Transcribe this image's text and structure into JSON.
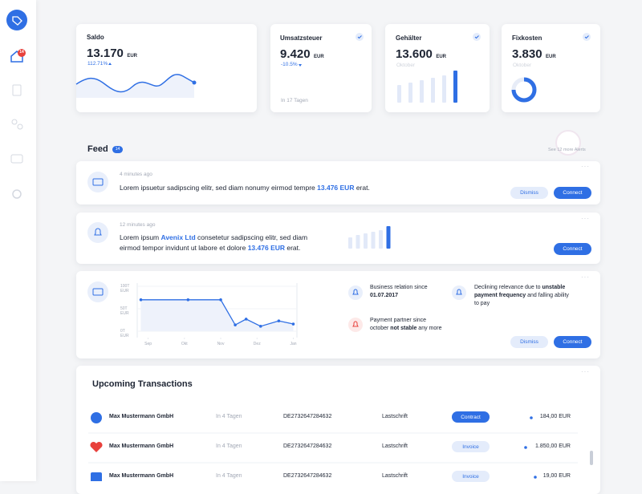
{
  "sidebar": {
    "badge": "14"
  },
  "cards": [
    {
      "title": "Saldo",
      "amount": "13.170",
      "currency": "EUR",
      "change": "112.71%"
    },
    {
      "title": "Umsatzsteuer",
      "amount": "9.420",
      "currency": "EUR",
      "change": "-10.5%",
      "note": "In 17 Tagen"
    },
    {
      "title": "Gehälter",
      "amount": "13.600",
      "currency": "EUR",
      "note": "Oktober",
      "bars": [
        22,
        25,
        28,
        31,
        34,
        40
      ]
    },
    {
      "title": "Fixkosten",
      "amount": "3.830",
      "currency": "EUR",
      "note": "Oktober"
    }
  ],
  "feed": {
    "title": "Feed",
    "badge": "14",
    "more": "See 12 more Alerts",
    "items": [
      {
        "time": "4 minutes ago",
        "text": [
          "Lorem ipsuetur sadipscing elitr, sed diam nonumy eirmod tempre ",
          "13.476 EUR",
          " erat."
        ],
        "buttons": [
          "Dismiss",
          "Connect"
        ]
      },
      {
        "time": "12 minutes ago",
        "text": [
          "Lorem ipsum ",
          "Avenix Ltd",
          " consetetur sadipscing elitr, sed diam eirmod tempor invidunt ut labore et dolore ",
          "13.476 EUR",
          " erat."
        ],
        "buttons": [
          "Connect"
        ],
        "bars": [
          14,
          17,
          19,
          21,
          23,
          28
        ]
      },
      {
        "chart": {
          "type": "line",
          "color": "#2f6fe4",
          "x": [
            -0.2,
            1.1,
            2,
            2.4,
            2.7,
            3.1,
            3.6,
            4
          ],
          "values": [
            70,
            70,
            70,
            14,
            27,
            11,
            23,
            16
          ],
          "xlim": [
            -0.3,
            4.1
          ],
          "ylim": [
            0,
            100
          ],
          "xticks": [
            {
              "value": 0,
              "label": "Sep"
            },
            {
              "value": 1,
              "label": "Okt"
            },
            {
              "value": 2,
              "label": "Nov"
            },
            {
              "value": 3,
              "label": "Dez"
            },
            {
              "value": 4,
              "label": "Jan"
            }
          ],
          "yticks": [
            {
              "value": 100,
              "label": "100T EUR"
            },
            {
              "value": 50,
              "label": "50T EUR"
            },
            {
              "value": 0,
              "label": "0T EUR"
            }
          ]
        },
        "insights": [
          {
            "text": [
              "Business relation since ",
              "01.07.2017"
            ]
          },
          {
            "text": [
              "Payment partner since october ",
              "not stable",
              " any more"
            ]
          },
          {
            "text": [
              "Declining relevance due to ",
              "unstable payment frequency",
              " and falling ability to pay"
            ]
          }
        ],
        "buttons": [
          "Dismiss",
          "Connect"
        ]
      }
    ]
  },
  "transactions": {
    "title": "Upcoming Transactions",
    "rows": [
      {
        "name": "Max Mustermann GmbH",
        "due": "In 4 Tagen",
        "iban": "DE2732647284632",
        "method": "Lastschrift",
        "tag": "Contract",
        "amount": "184,00 EUR"
      },
      {
        "name": "Max Mustermann GmbH",
        "due": "In 4 Tagen",
        "iban": "DE2732647284632",
        "method": "Lastschrift",
        "tag": "Invoice",
        "amount": "1.850,00 EUR"
      },
      {
        "name": "Max Mustermann GmbH",
        "due": "In 4 Tagen",
        "iban": "DE2732647284632",
        "method": "Lastschrift",
        "tag": "Invoice",
        "amount": "19,00 EUR"
      }
    ]
  }
}
